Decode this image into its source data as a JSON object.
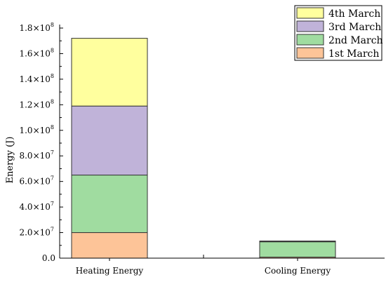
{
  "chart_data": {
    "type": "bar",
    "stacked": true,
    "categories": [
      "Heating Energy",
      "Cooling Energy"
    ],
    "series": [
      {
        "name": "1st March",
        "color": "#FDC498",
        "values": [
          20000000,
          800000
        ]
      },
      {
        "name": "2nd March",
        "color": "#A0DCA0",
        "values": [
          45000000,
          12000000
        ]
      },
      {
        "name": "3rd March",
        "color": "#C0B3D9",
        "values": [
          54000000,
          400000
        ]
      },
      {
        "name": "4th March",
        "color": "#FFFF9E",
        "values": [
          53000000,
          200000
        ]
      }
    ],
    "title": "",
    "xlabel": "",
    "ylabel": "Energy (J)",
    "ylim": [
      0,
      180000000
    ],
    "y_ticks": [
      {
        "value": 0,
        "mantissa": "0.0",
        "exp": ""
      },
      {
        "value": 20000000,
        "mantissa": "2.0×10",
        "exp": "7"
      },
      {
        "value": 40000000,
        "mantissa": "4.0×10",
        "exp": "7"
      },
      {
        "value": 60000000,
        "mantissa": "6.0×10",
        "exp": "7"
      },
      {
        "value": 80000000,
        "mantissa": "8.0×10",
        "exp": "7"
      },
      {
        "value": 100000000,
        "mantissa": "1.0×10",
        "exp": "8"
      },
      {
        "value": 120000000,
        "mantissa": "1.2×10",
        "exp": "8"
      },
      {
        "value": 140000000,
        "mantissa": "1.4×10",
        "exp": "8"
      },
      {
        "value": 160000000,
        "mantissa": "1.6×10",
        "exp": "8"
      },
      {
        "value": 180000000,
        "mantissa": "1.8×10",
        "exp": "8"
      }
    ],
    "legend_order": [
      "4th March",
      "3rd March",
      "2nd March",
      "1st March"
    ],
    "legend_position": "top-right",
    "grid": false
  }
}
